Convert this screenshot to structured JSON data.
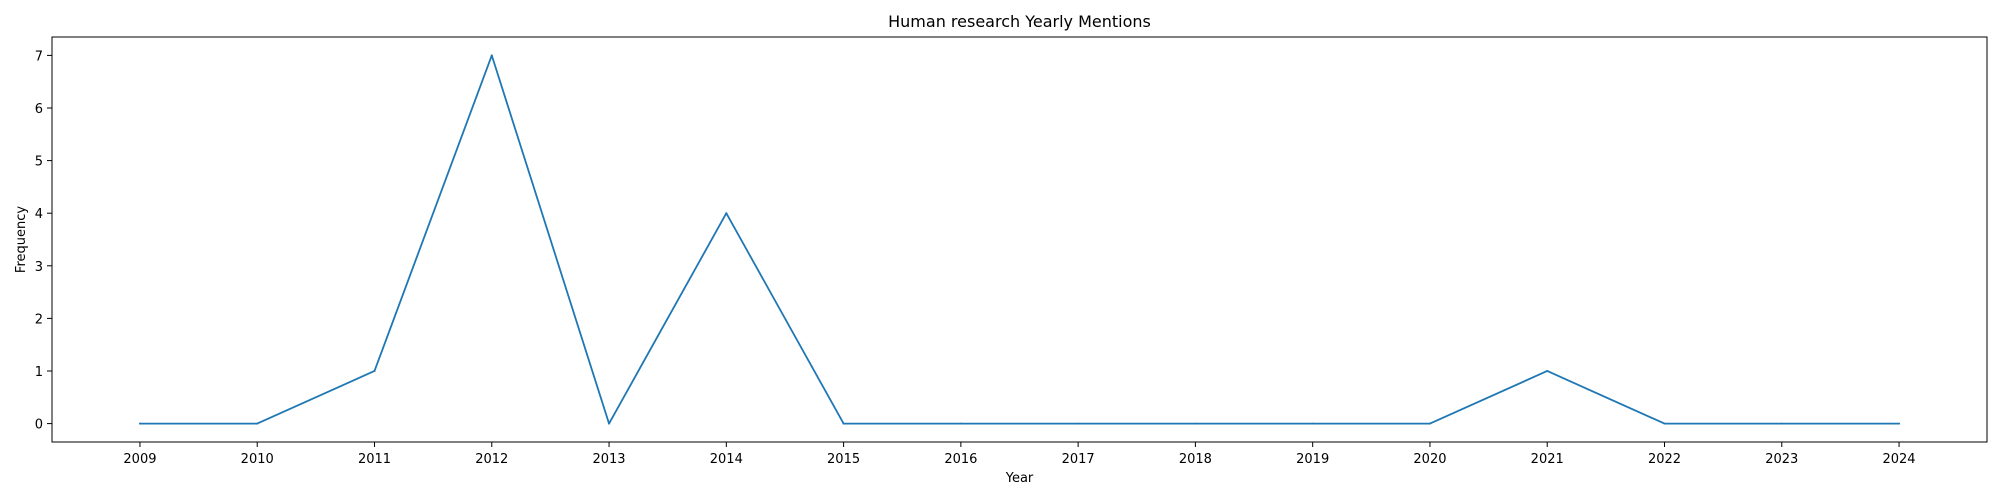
{
  "chart_data": {
    "type": "line",
    "title": "Human research Yearly Mentions",
    "xlabel": "Year",
    "ylabel": "Frequency",
    "x": [
      2009,
      2010,
      2011,
      2012,
      2013,
      2014,
      2015,
      2016,
      2017,
      2018,
      2019,
      2020,
      2021,
      2022,
      2023,
      2024
    ],
    "series": [
      {
        "values": [
          0,
          0,
          1,
          7,
          0,
          4,
          0,
          0,
          0,
          0,
          0,
          0,
          1,
          0,
          0,
          0
        ],
        "color": "#1f77b4"
      }
    ],
    "xlim": [
      2008.25,
      2024.75
    ],
    "ylim": [
      -0.35,
      7.35
    ],
    "yticks": [
      0,
      1,
      2,
      3,
      4,
      5,
      6,
      7
    ],
    "grid": false,
    "legend": "none"
  }
}
